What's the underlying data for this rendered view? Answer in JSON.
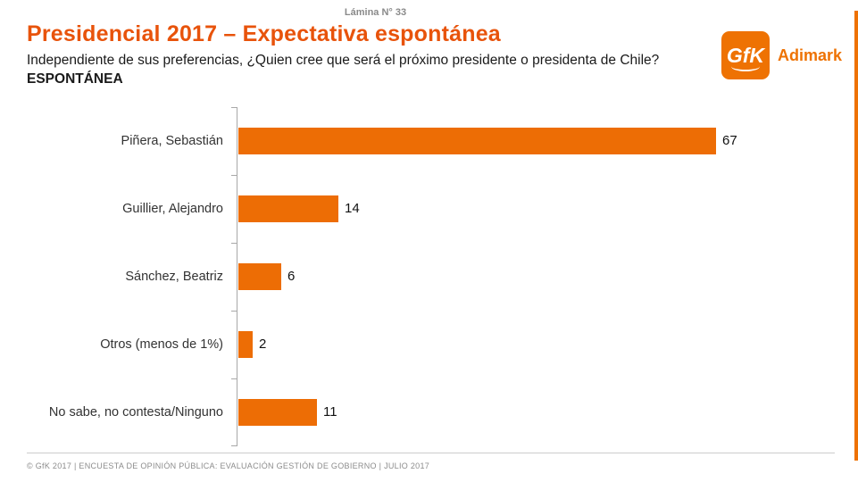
{
  "header": {
    "slide_label": "Lámina N° 33",
    "title": "Presidencial 2017 – Expectativa espontánea",
    "subtitle": "Independiente de sus preferencias, ¿Quien cree que será el próximo presidente o presidenta de Chile?",
    "subtitle_bold": "ESPONTÁNEA"
  },
  "logo": {
    "gfk": "GfK",
    "adimark": "Adimark"
  },
  "colors": {
    "accent": "#e8530b",
    "bar": "#ed6d05",
    "logo_orange": "#ee7203",
    "axis_gray": "#a8a8a8",
    "footer_gray": "#8c8c8c"
  },
  "chart_data": {
    "type": "bar",
    "orientation": "horizontal",
    "title": "Presidencial 2017 – Expectativa espontánea",
    "categories": [
      "Piñera, Sebastián",
      "Guillier, Alejandro",
      "Sánchez, Beatriz",
      "Otros (menos de 1%)",
      "No sabe, no contesta/Ninguno"
    ],
    "values": [
      67,
      14,
      6,
      2,
      11
    ],
    "xlabel": "",
    "ylabel": "",
    "xlim": [
      0,
      70
    ],
    "grid": false,
    "legend": false,
    "data_labels": true,
    "bar_color": "#ed6d05"
  },
  "footer": {
    "text": "© GfK 2017 | ENCUESTA DE OPINIÓN PÚBLICA: EVALUACIÓN GESTIÓN DE GOBIERNO | JULIO 2017"
  }
}
